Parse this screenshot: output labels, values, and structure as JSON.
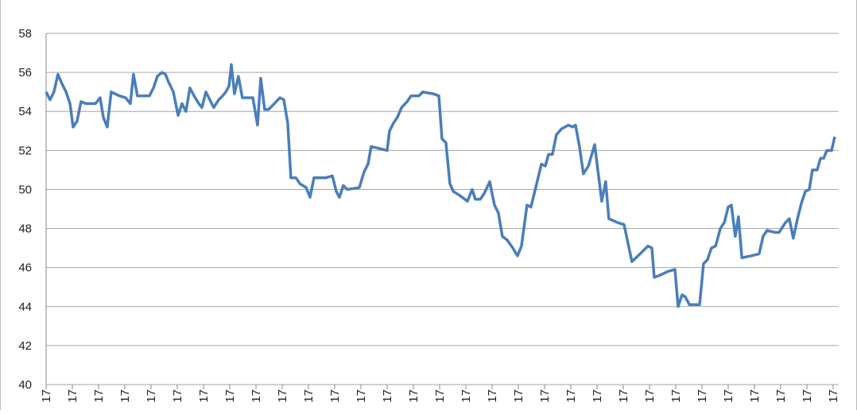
{
  "chart_data": {
    "type": "line",
    "x": [
      0,
      0.15,
      0.3,
      0.45,
      0.61,
      0.76,
      0.91,
      1.03,
      1.18,
      1.33,
      1.52,
      1.88,
      2.06,
      2.18,
      2.33,
      2.48,
      2.79,
      3.03,
      3.21,
      3.33,
      3.48,
      3.94,
      4.09,
      4.24,
      4.42,
      4.55,
      4.67,
      4.85,
      5.03,
      5.18,
      5.33,
      5.48,
      5.64,
      5.82,
      5.94,
      6.09,
      6.24,
      6.39,
      6.58,
      6.73,
      6.85,
      6.97,
      7.06,
      7.18,
      7.33,
      7.48,
      7.88,
      8.06,
      8.18,
      8.33,
      8.48,
      8.7,
      8.91,
      9.06,
      9.21,
      9.33,
      9.52,
      9.67,
      9.91,
      10.06,
      10.21,
      10.67,
      10.91,
      11.06,
      11.18,
      11.33,
      11.48,
      11.94,
      12.12,
      12.27,
      12.39,
      13,
      13.09,
      13.24,
      13.39,
      13.55,
      13.76,
      13.91,
      14.21,
      14.36,
      14.76,
      14.97,
      15.09,
      15.24,
      15.39,
      15.52,
      15.76,
      16.06,
      16.24,
      16.36,
      16.55,
      16.7,
      16.91,
      17.09,
      17.24,
      17.39,
      17.58,
      17.79,
      17.97,
      18.12,
      18.33,
      18.48,
      18.7,
      18.88,
      19.03,
      19.15,
      19.3,
      19.45,
      19.64,
      19.91,
      20.06,
      20.18,
      20.33,
      20.48,
      20.67,
      20.91,
      21.03,
      21.18,
      21.33,
      21.45,
      21.79,
      22.03,
      22.33,
      22.64,
      22.94,
      23.09,
      23.18,
      23.39,
      23.7,
      23.97,
      24.09,
      24.24,
      24.36,
      24.52,
      24.91,
      25.06,
      25.21,
      25.36,
      25.52,
      25.7,
      25.85,
      26,
      26.12,
      26.27,
      26.39,
      26.52,
      26.88,
      27.18,
      27.33,
      27.48,
      27.79,
      27.94,
      28.18,
      28.33,
      28.48,
      28.64,
      28.79,
      28.94,
      29.09,
      29.21,
      29.39,
      29.52,
      29.64,
      29.76,
      29.94,
      30.06
    ],
    "series": [
      {
        "color": "#4a7ebb",
        "values": [
          55.0,
          54.6,
          55.0,
          55.9,
          55.4,
          55.0,
          54.4,
          53.2,
          53.5,
          54.5,
          54.4,
          54.4,
          54.7,
          53.7,
          53.2,
          55.0,
          54.8,
          54.7,
          54.4,
          55.9,
          54.8,
          54.8,
          55.2,
          55.8,
          56.0,
          55.9,
          55.5,
          55.0,
          53.8,
          54.4,
          54.0,
          55.2,
          54.8,
          54.4,
          54.2,
          55.0,
          54.6,
          54.2,
          54.6,
          54.8,
          55.0,
          55.3,
          56.4,
          54.9,
          55.8,
          54.7,
          54.7,
          53.3,
          55.7,
          54.1,
          54.1,
          54.4,
          54.7,
          54.6,
          53.4,
          50.6,
          50.6,
          50.3,
          50.1,
          49.6,
          50.6,
          50.6,
          50.7,
          49.9,
          49.6,
          50.2,
          50.0,
          50.1,
          50.9,
          51.3,
          52.2,
          52.0,
          53.0,
          53.4,
          53.7,
          54.2,
          54.5,
          54.8,
          54.8,
          55.0,
          54.9,
          54.8,
          52.6,
          52.4,
          50.3,
          49.9,
          49.7,
          49.4,
          50.0,
          49.5,
          49.5,
          49.8,
          50.4,
          49.2,
          48.8,
          47.6,
          47.4,
          47.0,
          46.6,
          47.1,
          49.2,
          49.1,
          50.3,
          51.3,
          51.2,
          51.8,
          51.8,
          52.8,
          53.1,
          53.3,
          53.2,
          53.3,
          52.2,
          50.8,
          51.2,
          52.3,
          51.0,
          49.4,
          50.4,
          48.5,
          48.3,
          48.2,
          46.3,
          46.7,
          47.1,
          47.0,
          45.5,
          45.6,
          45.8,
          45.9,
          44.0,
          44.6,
          44.5,
          44.1,
          44.1,
          46.2,
          46.4,
          47.0,
          47.1,
          48.0,
          48.3,
          49.1,
          49.2,
          47.6,
          48.6,
          46.5,
          46.6,
          46.7,
          47.6,
          47.9,
          47.8,
          47.8,
          48.3,
          48.5,
          47.5,
          48.5,
          49.3,
          49.9,
          50.0,
          51.0,
          51.0,
          51.6,
          51.6,
          52.0,
          52.0,
          52.7
        ]
      }
    ],
    "xlim": [
      0,
      30.2
    ],
    "xticks": [
      {
        "value": 0,
        "label": "17"
      },
      {
        "value": 1,
        "label": "17"
      },
      {
        "value": 2,
        "label": "17"
      },
      {
        "value": 3,
        "label": "17"
      },
      {
        "value": 4,
        "label": "17"
      },
      {
        "value": 5,
        "label": "17"
      },
      {
        "value": 6,
        "label": "17"
      },
      {
        "value": 7,
        "label": "17"
      },
      {
        "value": 8,
        "label": "17"
      },
      {
        "value": 9,
        "label": "17"
      },
      {
        "value": 10,
        "label": "17"
      },
      {
        "value": 11,
        "label": "17"
      },
      {
        "value": 12,
        "label": "17"
      },
      {
        "value": 13,
        "label": "17"
      },
      {
        "value": 14,
        "label": "17"
      },
      {
        "value": 15,
        "label": "17"
      },
      {
        "value": 16,
        "label": "17"
      },
      {
        "value": 17,
        "label": "17"
      },
      {
        "value": 18,
        "label": "17"
      },
      {
        "value": 19,
        "label": "17"
      },
      {
        "value": 20,
        "label": "17"
      },
      {
        "value": 21,
        "label": "17"
      },
      {
        "value": 22,
        "label": "17"
      },
      {
        "value": 23,
        "label": "17"
      },
      {
        "value": 24,
        "label": "17"
      },
      {
        "value": 25,
        "label": "17"
      },
      {
        "value": 26,
        "label": "17"
      },
      {
        "value": 27,
        "label": "17"
      },
      {
        "value": 28,
        "label": "17"
      },
      {
        "value": 29,
        "label": "17"
      },
      {
        "value": 30,
        "label": "17"
      }
    ],
    "ylim": [
      40,
      58
    ],
    "yticks": [
      40,
      42,
      44,
      46,
      48,
      50,
      52,
      54,
      56,
      58
    ],
    "grid": true
  }
}
